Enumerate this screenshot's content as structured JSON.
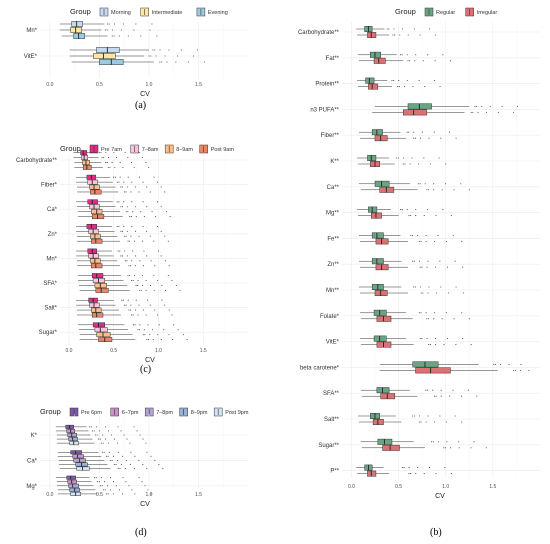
{
  "chart_data": [
    {
      "id": "a",
      "panel_label": "(a)",
      "type": "boxplot",
      "legend_title": "Group",
      "legend_placement": "top",
      "groups": [
        {
          "name": "Morning",
          "color": "#c6dbef"
        },
        {
          "name": "Intermediate",
          "color": "#fde6a6"
        },
        {
          "name": "Evening",
          "color": "#9ecae1"
        }
      ],
      "xlabel": "CV",
      "xlim": [
        -0.1,
        2.0
      ],
      "xticks": [
        "0.0",
        "0.5",
        "1.0",
        "1.5"
      ],
      "categories": [
        {
          "label": "Mn*",
          "stats": [
            [
              0.1,
              0.22,
              0.27,
              0.33,
              0.55
            ],
            [
              0.1,
              0.21,
              0.26,
              0.32,
              0.52
            ],
            [
              0.12,
              0.24,
              0.29,
              0.35,
              0.58
            ]
          ]
        },
        {
          "label": "VitE*",
          "stats": [
            [
              0.2,
              0.47,
              0.58,
              0.7,
              1.0
            ],
            [
              0.2,
              0.44,
              0.54,
              0.66,
              0.95
            ],
            [
              0.22,
              0.5,
              0.62,
              0.74,
              1.05
            ]
          ]
        }
      ]
    },
    {
      "id": "b",
      "panel_label": "(b)",
      "type": "boxplot",
      "legend_title": "Group",
      "legend_placement": "top",
      "groups": [
        {
          "name": "Regular",
          "color": "#6aa583"
        },
        {
          "name": "Irregular",
          "color": "#d97272"
        }
      ],
      "xlabel": "CV",
      "xlim": [
        -0.1,
        2.0
      ],
      "xticks": [
        "0.0",
        "0.5",
        "1.0",
        "1.5"
      ],
      "categories": [
        {
          "label": "Carbohydrate**",
          "stats": [
            [
              0.05,
              0.14,
              0.18,
              0.22,
              0.35
            ],
            [
              0.06,
              0.17,
              0.21,
              0.26,
              0.4
            ]
          ]
        },
        {
          "label": "Fat**",
          "stats": [
            [
              0.07,
              0.2,
              0.25,
              0.31,
              0.48
            ],
            [
              0.08,
              0.24,
              0.29,
              0.36,
              0.55
            ]
          ]
        },
        {
          "label": "Protein**",
          "stats": [
            [
              0.06,
              0.15,
              0.19,
              0.24,
              0.38
            ],
            [
              0.07,
              0.18,
              0.22,
              0.28,
              0.43
            ]
          ]
        },
        {
          "label": "n3 PUFA**",
          "stats": [
            [
              0.25,
              0.6,
              0.72,
              0.85,
              1.25
            ],
            [
              0.22,
              0.55,
              0.66,
              0.8,
              1.2
            ]
          ]
        },
        {
          "label": "Fiber**",
          "stats": [
            [
              0.08,
              0.22,
              0.27,
              0.33,
              0.52
            ],
            [
              0.09,
              0.25,
              0.31,
              0.38,
              0.58
            ]
          ]
        },
        {
          "label": "K**",
          "stats": [
            [
              0.06,
              0.17,
              0.21,
              0.26,
              0.4
            ],
            [
              0.07,
              0.2,
              0.25,
              0.3,
              0.46
            ]
          ]
        },
        {
          "label": "Ca**",
          "stats": [
            [
              0.08,
              0.25,
              0.32,
              0.4,
              0.62
            ],
            [
              0.1,
              0.3,
              0.37,
              0.45,
              0.7
            ]
          ]
        },
        {
          "label": "Mg**",
          "stats": [
            [
              0.06,
              0.18,
              0.22,
              0.27,
              0.42
            ],
            [
              0.07,
              0.21,
              0.26,
              0.32,
              0.5
            ]
          ]
        },
        {
          "label": "Fe**",
          "stats": [
            [
              0.08,
              0.22,
              0.27,
              0.34,
              0.52
            ],
            [
              0.09,
              0.26,
              0.32,
              0.39,
              0.6
            ]
          ]
        },
        {
          "label": "Zn**",
          "stats": [
            [
              0.08,
              0.22,
              0.27,
              0.34,
              0.53
            ],
            [
              0.09,
              0.26,
              0.32,
              0.39,
              0.6
            ]
          ]
        },
        {
          "label": "Mn**",
          "stats": [
            [
              0.08,
              0.22,
              0.28,
              0.34,
              0.53
            ],
            [
              0.09,
              0.25,
              0.31,
              0.38,
              0.6
            ]
          ]
        },
        {
          "label": "Folate*",
          "stats": [
            [
              0.09,
              0.24,
              0.3,
              0.37,
              0.58
            ],
            [
              0.1,
              0.27,
              0.34,
              0.42,
              0.65
            ]
          ]
        },
        {
          "label": "VitE*",
          "stats": [
            [
              0.09,
              0.24,
              0.3,
              0.37,
              0.58
            ],
            [
              0.1,
              0.27,
              0.34,
              0.42,
              0.66
            ]
          ]
        },
        {
          "label": "beta carotene*",
          "stats": [
            [
              0.3,
              0.65,
              0.78,
              0.92,
              1.35
            ],
            [
              0.3,
              0.68,
              0.84,
              1.05,
              1.55
            ]
          ]
        },
        {
          "label": "SFA**",
          "stats": [
            [
              0.1,
              0.27,
              0.33,
              0.4,
              0.62
            ],
            [
              0.11,
              0.31,
              0.38,
              0.46,
              0.7
            ]
          ]
        },
        {
          "label": "Salt**",
          "stats": [
            [
              0.07,
              0.2,
              0.25,
              0.3,
              0.47
            ],
            [
              0.08,
              0.23,
              0.28,
              0.34,
              0.53
            ]
          ]
        },
        {
          "label": "Sugar**",
          "stats": [
            [
              0.1,
              0.28,
              0.35,
              0.43,
              0.66
            ],
            [
              0.11,
              0.33,
              0.41,
              0.51,
              0.78
            ]
          ]
        },
        {
          "label": "P**",
          "stats": [
            [
              0.05,
              0.14,
              0.18,
              0.22,
              0.34
            ],
            [
              0.06,
              0.17,
              0.21,
              0.26,
              0.4
            ]
          ]
        }
      ]
    },
    {
      "id": "c",
      "panel_label": "(c)",
      "type": "boxplot",
      "legend_title": "Group",
      "legend_placement": "top",
      "groups": [
        {
          "name": "Pre 7am",
          "color": "#e7298a"
        },
        {
          "name": "7–8am",
          "color": "#f7c6dd"
        },
        {
          "name": "8–9am",
          "color": "#fdbf8a"
        },
        {
          "name": "Post 9am",
          "color": "#e8866a"
        }
      ],
      "xlabel": "CV",
      "xlim": [
        -0.1,
        2.0
      ],
      "xticks": [
        "0.0",
        "0.5",
        "1.0",
        "1.5"
      ],
      "categories": [
        {
          "label": "Carbohydrate**",
          "stats": [
            [
              0.05,
              0.13,
              0.16,
              0.2,
              0.31
            ],
            [
              0.05,
              0.14,
              0.17,
              0.21,
              0.33
            ],
            [
              0.06,
              0.15,
              0.19,
              0.23,
              0.36
            ],
            [
              0.06,
              0.16,
              0.2,
              0.25,
              0.38
            ]
          ]
        },
        {
          "label": "Fiber*",
          "stats": [
            [
              0.08,
              0.2,
              0.25,
              0.3,
              0.46
            ],
            [
              0.08,
              0.21,
              0.26,
              0.32,
              0.49
            ],
            [
              0.09,
              0.23,
              0.28,
              0.34,
              0.52
            ],
            [
              0.09,
              0.24,
              0.29,
              0.36,
              0.55
            ]
          ]
        },
        {
          "label": "Ca*",
          "stats": [
            [
              0.08,
              0.21,
              0.26,
              0.32,
              0.49
            ],
            [
              0.09,
              0.23,
              0.28,
              0.34,
              0.52
            ],
            [
              0.1,
              0.25,
              0.31,
              0.37,
              0.57
            ],
            [
              0.1,
              0.26,
              0.32,
              0.39,
              0.6
            ]
          ]
        },
        {
          "label": "Zn*",
          "stats": [
            [
              0.08,
              0.2,
              0.25,
              0.31,
              0.48
            ],
            [
              0.08,
              0.22,
              0.27,
              0.33,
              0.51
            ],
            [
              0.09,
              0.24,
              0.29,
              0.35,
              0.54
            ],
            [
              0.09,
              0.25,
              0.3,
              0.37,
              0.57
            ]
          ]
        },
        {
          "label": "Mn*",
          "stats": [
            [
              0.08,
              0.21,
              0.26,
              0.31,
              0.48
            ],
            [
              0.08,
              0.22,
              0.27,
              0.33,
              0.5
            ],
            [
              0.09,
              0.24,
              0.29,
              0.35,
              0.54
            ],
            [
              0.09,
              0.25,
              0.3,
              0.37,
              0.57
            ]
          ]
        },
        {
          "label": "SFA*",
          "stats": [
            [
              0.1,
              0.26,
              0.31,
              0.38,
              0.58
            ],
            [
              0.1,
              0.27,
              0.33,
              0.4,
              0.61
            ],
            [
              0.11,
              0.29,
              0.35,
              0.42,
              0.65
            ],
            [
              0.12,
              0.3,
              0.36,
              0.44,
              0.68
            ]
          ]
        },
        {
          "label": "Salt*",
          "stats": [
            [
              0.08,
              0.22,
              0.27,
              0.32,
              0.5
            ],
            [
              0.08,
              0.23,
              0.28,
              0.34,
              0.52
            ],
            [
              0.09,
              0.25,
              0.3,
              0.36,
              0.56
            ],
            [
              0.09,
              0.26,
              0.31,
              0.38,
              0.58
            ]
          ]
        },
        {
          "label": "Sugar*",
          "stats": [
            [
              0.1,
              0.27,
              0.33,
              0.4,
              0.62
            ],
            [
              0.11,
              0.29,
              0.35,
              0.43,
              0.66
            ],
            [
              0.12,
              0.31,
              0.38,
              0.46,
              0.71
            ],
            [
              0.12,
              0.33,
              0.4,
              0.48,
              0.74
            ]
          ]
        }
      ]
    },
    {
      "id": "d",
      "panel_label": "(d)",
      "type": "boxplot",
      "legend_title": "Group",
      "legend_placement": "top",
      "groups": [
        {
          "name": "Pre 6pm",
          "color": "#7b5aa6"
        },
        {
          "name": "6–7pm",
          "color": "#c994c7"
        },
        {
          "name": "7–8pm",
          "color": "#b3a2d6"
        },
        {
          "name": "8–9pm",
          "color": "#9bb0d9"
        },
        {
          "name": "Post 9pm",
          "color": "#d5e3f3"
        }
      ],
      "xlabel": "CV",
      "xlim": [
        -0.1,
        2.0
      ],
      "xticks": [
        "0.0",
        "0.5",
        "1.0",
        "1.5"
      ],
      "categories": [
        {
          "label": "K*",
          "stats": [
            [
              0.06,
              0.16,
              0.2,
              0.24,
              0.37
            ],
            [
              0.06,
              0.17,
              0.21,
              0.25,
              0.39
            ],
            [
              0.07,
              0.18,
              0.22,
              0.27,
              0.41
            ],
            [
              0.07,
              0.19,
              0.23,
              0.28,
              0.43
            ],
            [
              0.07,
              0.2,
              0.24,
              0.29,
              0.45
            ]
          ]
        },
        {
          "label": "Ca*",
          "stats": [
            [
              0.08,
              0.21,
              0.26,
              0.32,
              0.49
            ],
            [
              0.08,
              0.23,
              0.28,
              0.34,
              0.52
            ],
            [
              0.09,
              0.24,
              0.3,
              0.36,
              0.55
            ],
            [
              0.09,
              0.26,
              0.32,
              0.38,
              0.58
            ],
            [
              0.1,
              0.27,
              0.33,
              0.4,
              0.61
            ]
          ]
        },
        {
          "label": "Mg*",
          "stats": [
            [
              0.06,
              0.17,
              0.21,
              0.26,
              0.4
            ],
            [
              0.07,
              0.18,
              0.22,
              0.27,
              0.42
            ],
            [
              0.07,
              0.19,
              0.23,
              0.29,
              0.44
            ],
            [
              0.08,
              0.2,
              0.25,
              0.3,
              0.46
            ],
            [
              0.08,
              0.21,
              0.26,
              0.31,
              0.48
            ]
          ]
        }
      ]
    }
  ]
}
